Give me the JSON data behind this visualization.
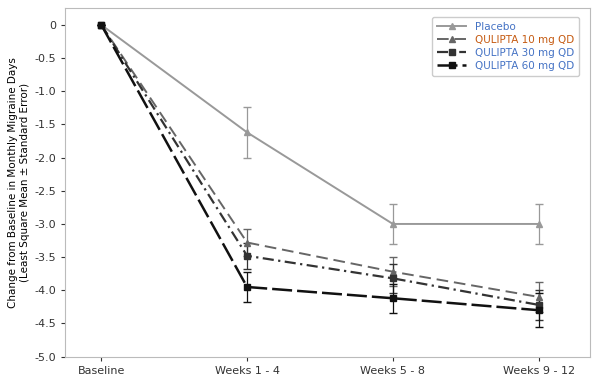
{
  "x_labels": [
    "Baseline",
    "Weeks 1 - 4",
    "Weeks 5 - 8",
    "Weeks 9 - 12"
  ],
  "x_positions": [
    0,
    1,
    2,
    3
  ],
  "series": [
    {
      "label": "Placebo",
      "values": [
        0.0,
        -1.62,
        -3.0,
        -3.0
      ],
      "errors": [
        0.0,
        0.38,
        0.3,
        0.3
      ],
      "color": "#999999",
      "linewidth": 1.4,
      "marker": "^",
      "markersize": 5
    },
    {
      "label": "QULIPTA 10 mg QD",
      "values": [
        0.0,
        -3.28,
        -3.72,
        -4.1
      ],
      "errors": [
        0.0,
        0.2,
        0.22,
        0.23
      ],
      "color": "#666666",
      "linewidth": 1.4,
      "marker": "^",
      "markersize": 5
    },
    {
      "label": "QULIPTA 30 mg QD",
      "values": [
        0.0,
        -3.48,
        -3.82,
        -4.22
      ],
      "errors": [
        0.0,
        0.2,
        0.22,
        0.23
      ],
      "color": "#333333",
      "linewidth": 1.6,
      "marker": "s",
      "markersize": 5
    },
    {
      "label": "QULIPTA 60 mg QD",
      "values": [
        0.0,
        -3.95,
        -4.12,
        -4.3
      ],
      "errors": [
        0.0,
        0.22,
        0.22,
        0.26
      ],
      "color": "#111111",
      "linewidth": 1.8,
      "marker": "s",
      "markersize": 5
    }
  ],
  "ylabel": "Change from Baseline in Monthly Migraine Days\n(Least Square Mean ± Standard Error)",
  "ylim": [
    -5.0,
    0.25
  ],
  "yticks": [
    0.0,
    -0.5,
    -1.0,
    -1.5,
    -2.0,
    -2.5,
    -3.0,
    -3.5,
    -4.0,
    -4.5,
    -5.0
  ],
  "background_color": "#ffffff",
  "legend_label_colors": [
    "#4472c4",
    "#c55a11",
    "#4472c4",
    "#4472c4"
  ],
  "figsize": [
    5.98,
    3.84
  ],
  "dpi": 100
}
